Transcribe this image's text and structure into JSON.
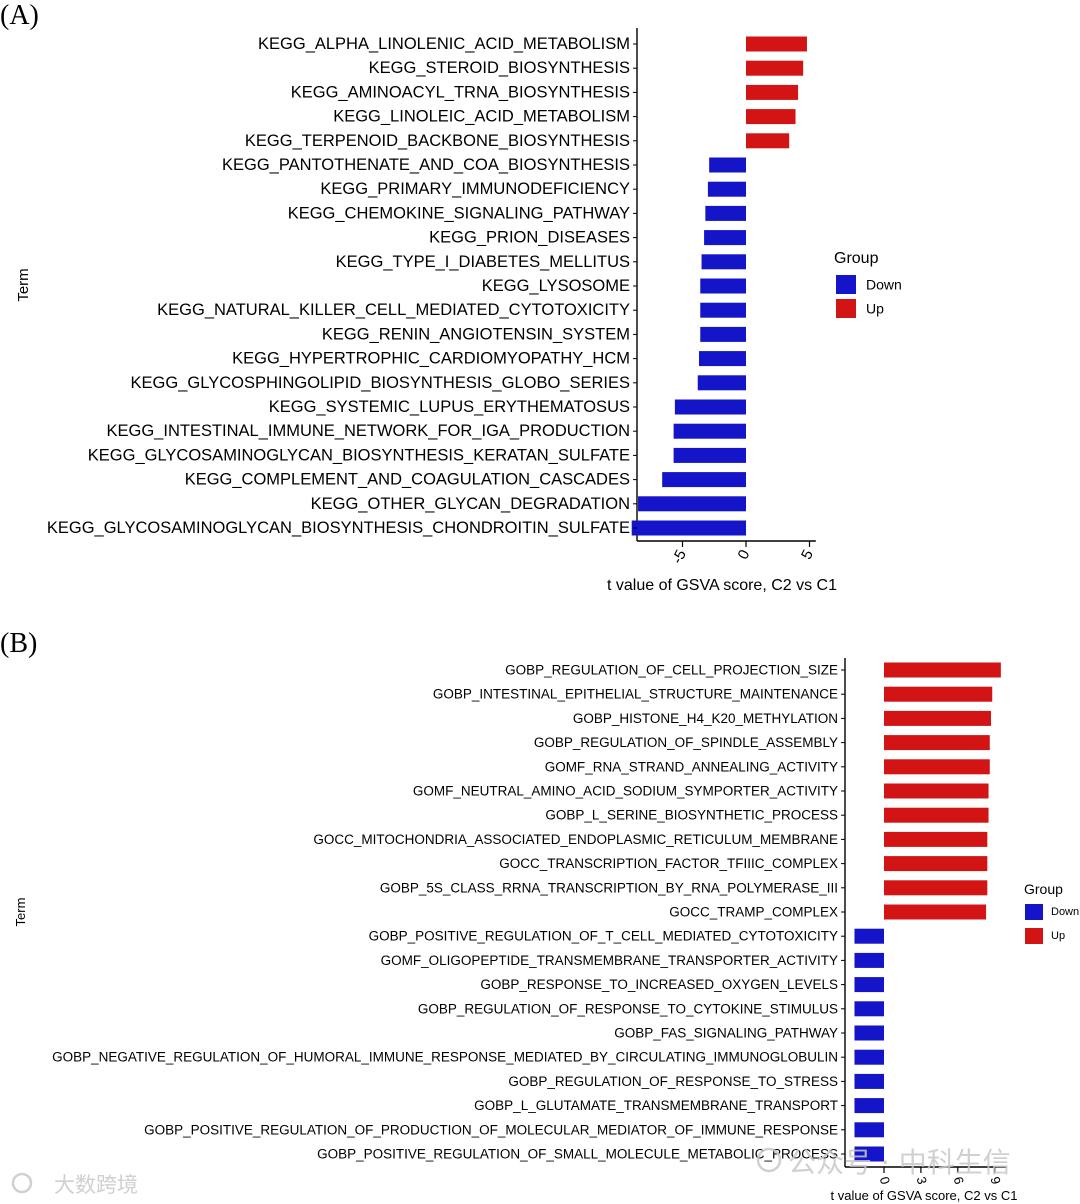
{
  "colors": {
    "down": "#1414c8",
    "up": "#d21414",
    "axis": "#000000",
    "watermark": "#c8c8c8"
  },
  "watermark": {
    "right_text": "公众号 · 中科生信",
    "left_text": "大数跨境"
  },
  "chart_data": [
    {
      "panel": "(A)",
      "type": "bar",
      "orientation": "horizontal",
      "xlabel": "t value of GSVA score, C2 vs C1",
      "ylabel": "Term",
      "xlim": [
        -9,
        5.5
      ],
      "ticks": [
        -5,
        0,
        5
      ],
      "tick_labels": [
        "-5",
        "0",
        "5"
      ],
      "legend": {
        "title": "Group",
        "position": "right",
        "items": [
          {
            "label": "Down",
            "key": "down"
          },
          {
            "label": "Up",
            "key": "up"
          }
        ]
      },
      "categories": [
        "KEGG_ALPHA_LINOLENIC_ACID_METABOLISM",
        "KEGG_STEROID_BIOSYNTHESIS",
        "KEGG_AMINOACYL_TRNA_BIOSYNTHESIS",
        "KEGG_LINOLEIC_ACID_METABOLISM",
        "KEGG_TERPENOID_BACKBONE_BIOSYNTHESIS",
        "KEGG_PANTOTHENATE_AND_COA_BIOSYNTHESIS",
        "KEGG_PRIMARY_IMMUNODEFICIENCY",
        "KEGG_CHEMOKINE_SIGNALING_PATHWAY",
        "KEGG_PRION_DISEASES",
        "KEGG_TYPE_I_DIABETES_MELLITUS",
        "KEGG_LYSOSOME",
        "KEGG_NATURAL_KILLER_CELL_MEDIATED_CYTOTOXICITY",
        "KEGG_RENIN_ANGIOTENSIN_SYSTEM",
        "KEGG_HYPERTROPHIC_CARDIOMYOPATHY_HCM",
        "KEGG_GLYCOSPHINGOLIPID_BIOSYNTHESIS_GLOBO_SERIES",
        "KEGG_SYSTEMIC_LUPUS_ERYTHEMATOSUS",
        "KEGG_INTESTINAL_IMMUNE_NETWORK_FOR_IGA_PRODUCTION",
        "KEGG_GLYCOSAMINOGLYCAN_BIOSYNTHESIS_KERATAN_SULFATE",
        "KEGG_COMPLEMENT_AND_COAGULATION_CASCADES",
        "KEGG_OTHER_GLYCAN_DEGRADATION",
        "KEGG_GLYCOSAMINOGLYCAN_BIOSYNTHESIS_CHONDROITIN_SULFATE"
      ],
      "values": [
        4.8,
        4.5,
        4.1,
        3.9,
        3.4,
        -2.9,
        -3.0,
        -3.2,
        -3.3,
        -3.5,
        -3.6,
        -3.6,
        -3.6,
        -3.7,
        -3.8,
        -5.6,
        -5.7,
        -5.7,
        -6.6,
        -8.5,
        -9.0
      ]
    },
    {
      "panel": "(B)",
      "type": "bar",
      "orientation": "horizontal",
      "xlabel": "t value of GSVA score, C2 vs C1",
      "ylabel": "Term",
      "xlim": [
        -3,
        10
      ],
      "ticks": [
        0,
        3,
        6,
        9
      ],
      "tick_labels": [
        "0",
        "3",
        "6",
        "9"
      ],
      "legend": {
        "title": "Group",
        "position": "right",
        "items": [
          {
            "label": "Down",
            "key": "down"
          },
          {
            "label": "Up",
            "key": "up"
          }
        ]
      },
      "categories": [
        "GOBP_REGULATION_OF_CELL_PROJECTION_SIZE",
        "GOBP_INTESTINAL_EPITHELIAL_STRUCTURE_MAINTENANCE",
        "GOBP_HISTONE_H4_K20_METHYLATION",
        "GOBP_REGULATION_OF_SPINDLE_ASSEMBLY",
        "GOMF_RNA_STRAND_ANNEALING_ACTIVITY",
        "GOMF_NEUTRAL_AMINO_ACID_SODIUM_SYMPORTER_ACTIVITY",
        "GOBP_L_SERINE_BIOSYNTHETIC_PROCESS",
        "GOCC_MITOCHONDRIA_ASSOCIATED_ENDOPLASMIC_RETICULUM_MEMBRANE",
        "GOCC_TRANSCRIPTION_FACTOR_TFIIIC_COMPLEX",
        "GOBP_5S_CLASS_RRNA_TRANSCRIPTION_BY_RNA_POLYMERASE_III",
        "GOCC_TRAMP_COMPLEX",
        "GOBP_POSITIVE_REGULATION_OF_T_CELL_MEDIATED_CYTOTOXICITY",
        "GOMF_OLIGOPEPTIDE_TRANSMEMBRANE_TRANSPORTER_ACTIVITY",
        "GOBP_RESPONSE_TO_INCREASED_OXYGEN_LEVELS",
        "GOBP_REGULATION_OF_RESPONSE_TO_CYTOKINE_STIMULUS",
        "GOBP_FAS_SIGNALING_PATHWAY",
        "GOBP_NEGATIVE_REGULATION_OF_HUMORAL_IMMUNE_RESPONSE_MEDIATED_BY_CIRCULATING_IMMUNOGLOBULIN",
        "GOBP_REGULATION_OF_RESPONSE_TO_STRESS",
        "GOBP_L_GLUTAMATE_TRANSMEMBRANE_TRANSPORT",
        "GOBP_POSITIVE_REGULATION_OF_PRODUCTION_OF_MOLECULAR_MEDIATOR_OF_IMMUNE_RESPONSE",
        "GOBP_POSITIVE_REGULATION_OF_SMALL_MOLECULE_METABOLIC_PROCESS"
      ],
      "values": [
        9.5,
        8.8,
        8.7,
        8.6,
        8.6,
        8.5,
        8.5,
        8.4,
        8.4,
        8.4,
        8.3,
        -2.4,
        -2.4,
        -2.4,
        -2.4,
        -2.4,
        -2.4,
        -2.4,
        -2.4,
        -2.4,
        -2.4
      ]
    }
  ]
}
